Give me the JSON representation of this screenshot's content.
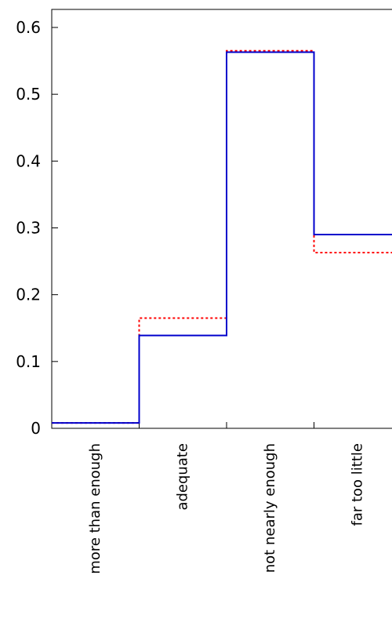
{
  "chart_data": {
    "type": "line",
    "step": true,
    "categories": [
      "more than enough",
      "adequate",
      "not nearly enough",
      "far too little"
    ],
    "series": [
      {
        "values": [
          0.008,
          0.165,
          0.565,
          0.263
        ],
        "color": "#ff0000",
        "style": "dotted"
      },
      {
        "values": [
          0.008,
          0.139,
          0.563,
          0.29
        ],
        "color": "#0000cc",
        "style": "solid"
      }
    ],
    "y_ticks": [
      "0",
      "0.1",
      "0.2",
      "0.3",
      "0.4",
      "0.5",
      "0.6"
    ],
    "ylim": [
      0,
      0.625
    ],
    "grid": false,
    "legend": "none"
  }
}
